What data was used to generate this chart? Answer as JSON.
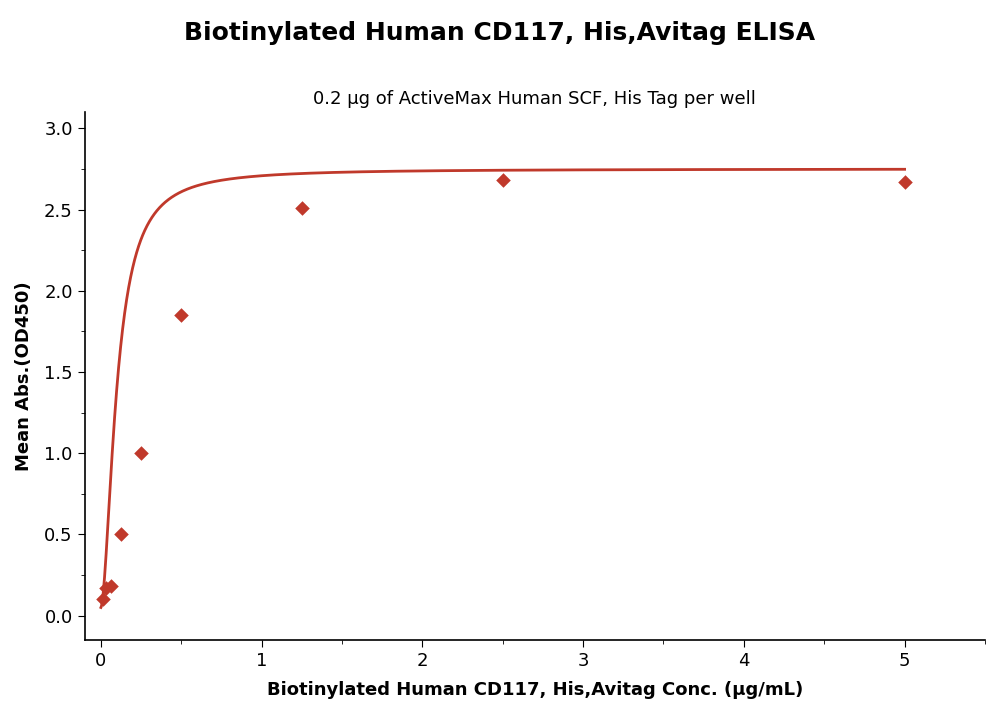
{
  "title": "Biotinylated Human CD117, His,Avitag ELISA",
  "subtitle": "0.2 μg of ActiveMax Human SCF, His Tag per well",
  "xlabel": "Biotinylated Human CD117, His,Avitag Conc. (μg/mL)",
  "ylabel": "Mean Abs.(OD450)",
  "scatter_x": [
    0.016,
    0.031,
    0.063,
    0.125,
    0.25,
    0.5,
    1.25,
    2.5,
    5.0
  ],
  "scatter_y": [
    0.1,
    0.17,
    0.18,
    0.5,
    1.0,
    1.85,
    2.51,
    2.68,
    2.67
  ],
  "curve_color": "#C0392B",
  "marker_color": "#C0392B",
  "xlim": [
    -0.1,
    5.5
  ],
  "ylim": [
    -0.15,
    3.1
  ],
  "xticks": [
    0,
    1,
    2,
    3,
    4,
    5
  ],
  "yticks": [
    0.0,
    0.5,
    1.0,
    1.5,
    2.0,
    2.5,
    3.0
  ],
  "title_fontsize": 18,
  "subtitle_fontsize": 13,
  "label_fontsize": 13,
  "tick_fontsize": 13
}
